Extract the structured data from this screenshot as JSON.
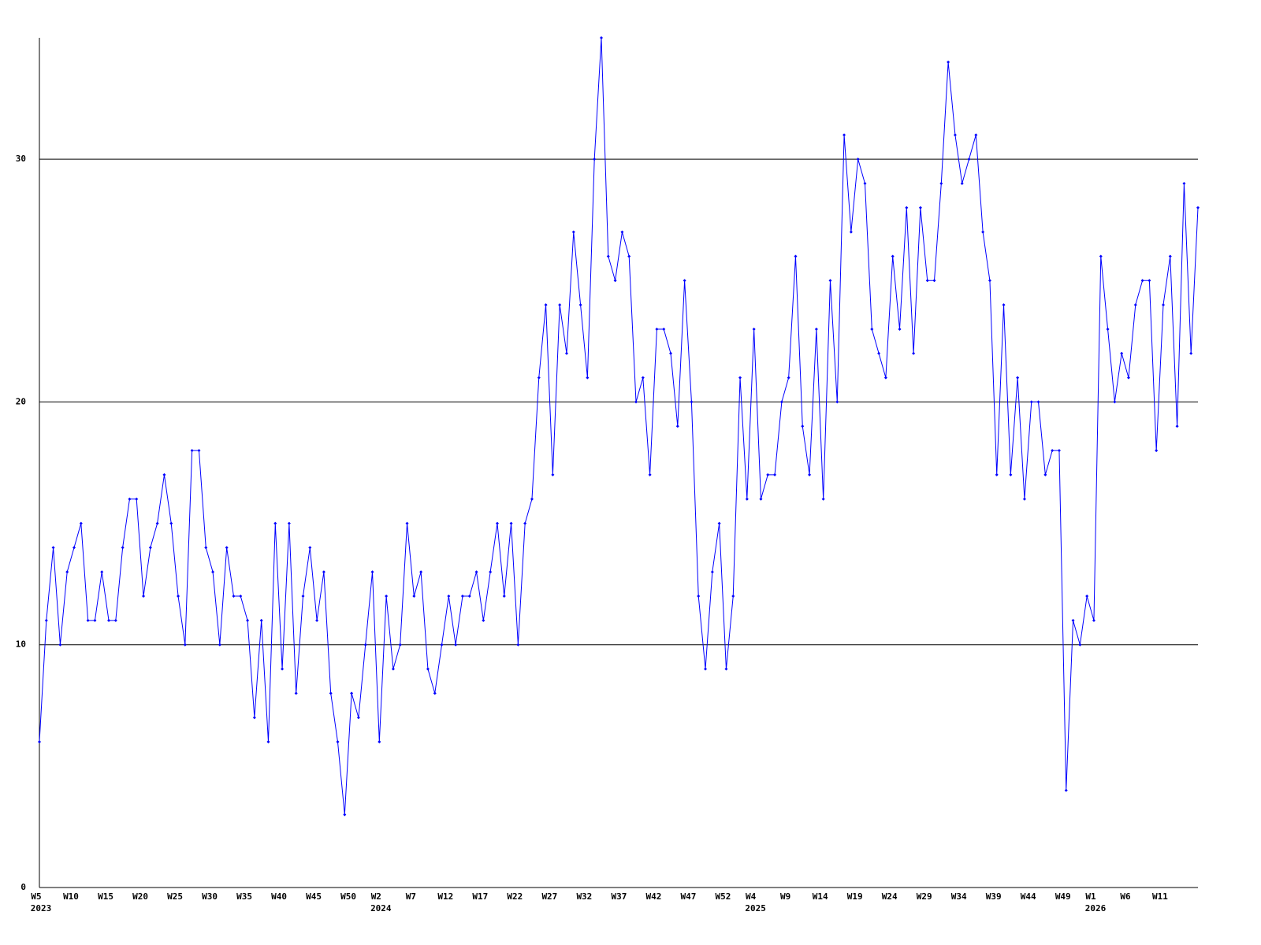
{
  "chart_data": {
    "type": "line",
    "categories": [
      "W5",
      null,
      null,
      null,
      null,
      "W10",
      null,
      null,
      null,
      null,
      "W15",
      null,
      null,
      null,
      null,
      "W20",
      null,
      null,
      null,
      null,
      "W25",
      null,
      null,
      null,
      null,
      "W30",
      null,
      null,
      null,
      null,
      "W35",
      null,
      null,
      null,
      null,
      "W40",
      null,
      null,
      null,
      null,
      "W45",
      null,
      null,
      null,
      null,
      "W50",
      null,
      null,
      null,
      "W2",
      null,
      null,
      null,
      null,
      "W7",
      null,
      null,
      null,
      null,
      "W12",
      null,
      null,
      null,
      null,
      "W17",
      null,
      null,
      null,
      null,
      "W22",
      null,
      null,
      null,
      null,
      "W27",
      null,
      null,
      null,
      null,
      "W32",
      null,
      null,
      null,
      null,
      "W37",
      null,
      null,
      null,
      null,
      "W42",
      null,
      null,
      null,
      null,
      "W47",
      null,
      null,
      null,
      null,
      "W52",
      null,
      null,
      null,
      "W4",
      null,
      null,
      null,
      null,
      "W9",
      null,
      null,
      null,
      null,
      "W14",
      null,
      null,
      null,
      null,
      "W19",
      null,
      null,
      null,
      null,
      "W24",
      null,
      null,
      null,
      null,
      "W29",
      null,
      null,
      null,
      null,
      "W34",
      null,
      null,
      null,
      null,
      "W39",
      null,
      null,
      null,
      null,
      "W44",
      null,
      null,
      null,
      null,
      "W49",
      null,
      null,
      null,
      "W1",
      null,
      null,
      null,
      null,
      "W6",
      null,
      null,
      null,
      null,
      "W11",
      null,
      null,
      null,
      null,
      null
    ],
    "category_years": [
      "2023",
      null,
      null,
      null,
      null,
      null,
      null,
      null,
      null,
      null,
      null,
      null,
      null,
      null,
      null,
      null,
      null,
      null,
      null,
      null,
      null,
      null,
      null,
      null,
      null,
      null,
      null,
      null,
      null,
      null,
      null,
      null,
      null,
      null,
      null,
      null,
      null,
      null,
      null,
      null,
      null,
      null,
      null,
      null,
      null,
      null,
      null,
      null,
      null,
      "2024",
      null,
      null,
      null,
      null,
      null,
      null,
      null,
      null,
      null,
      null,
      null,
      null,
      null,
      null,
      null,
      null,
      null,
      null,
      null,
      null,
      null,
      null,
      null,
      null,
      null,
      null,
      null,
      null,
      null,
      null,
      null,
      null,
      null,
      null,
      null,
      null,
      null,
      null,
      null,
      null,
      null,
      null,
      null,
      null,
      null,
      null,
      null,
      null,
      null,
      null,
      null,
      null,
      null,
      "2025",
      null,
      null,
      null,
      null,
      null,
      null,
      null,
      null,
      null,
      null,
      null,
      null,
      null,
      null,
      null,
      null,
      null,
      null,
      null,
      null,
      null,
      null,
      null,
      null,
      null,
      null,
      null,
      null,
      null,
      null,
      null,
      null,
      null,
      null,
      null,
      null,
      null,
      null,
      null,
      null,
      null,
      null,
      null,
      null,
      null,
      null,
      null,
      null,
      "2026",
      null,
      null,
      null,
      null,
      null,
      null,
      null,
      null,
      null,
      null,
      null,
      null,
      null,
      null,
      null
    ],
    "values": [
      6,
      11,
      14,
      10,
      13,
      14,
      15,
      11,
      11,
      13,
      11,
      11,
      14,
      16,
      16,
      12,
      14,
      15,
      17,
      15,
      12,
      10,
      18,
      18,
      14,
      13,
      10,
      14,
      12,
      12,
      11,
      7,
      11,
      6,
      15,
      9,
      15,
      8,
      12,
      14,
      11,
      13,
      8,
      6,
      3,
      8,
      7,
      10,
      13,
      6,
      12,
      9,
      10,
      15,
      12,
      13,
      9,
      8,
      10,
      12,
      10,
      12,
      12,
      13,
      11,
      13,
      15,
      12,
      15,
      10,
      15,
      16,
      21,
      24,
      17,
      24,
      22,
      27,
      24,
      21,
      30,
      35,
      26,
      25,
      27,
      26,
      20,
      21,
      17,
      23,
      23,
      22,
      19,
      25,
      20,
      12,
      9,
      13,
      15,
      9,
      12,
      21,
      16,
      23,
      16,
      17,
      17,
      20,
      21,
      26,
      19,
      17,
      23,
      16,
      25,
      20,
      31,
      27,
      30,
      29,
      23,
      22,
      21,
      26,
      23,
      28,
      22,
      28,
      25,
      25,
      29,
      34,
      31,
      29,
      30,
      31,
      27,
      25,
      17,
      24,
      17,
      21,
      16,
      20,
      20,
      17,
      18,
      18,
      4,
      11,
      10,
      12,
      11,
      26,
      23,
      20,
      22,
      21,
      24,
      25,
      25,
      18,
      24,
      26,
      19,
      29,
      22,
      28
    ],
    "color": "#0000ff",
    "ylim": [
      0,
      35
    ],
    "yticks": [
      0,
      10,
      20,
      30
    ],
    "grid": true
  }
}
